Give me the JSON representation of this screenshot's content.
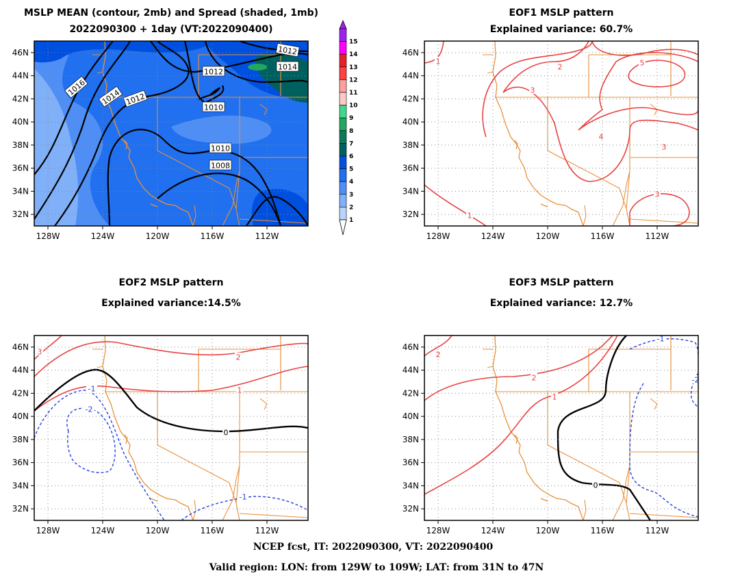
{
  "panels": [
    {
      "id": "mean",
      "title_lines": [
        "MSLP MEAN (contour, 2mb) and Spread (shaded, 1mb)",
        "2022090300 + 1day (VT:2022090400)"
      ],
      "contour_labels": [
        "1016",
        "1014",
        "1012",
        "1012",
        "1012",
        "1014",
        "1010",
        "1010",
        "1008"
      ]
    },
    {
      "id": "eof1",
      "title_lines": [
        "EOF1 MSLP pattern",
        "Explained variance: 60.7%"
      ],
      "contour_labels": [
        "1",
        "2",
        "3",
        "4",
        "5",
        "3",
        "3",
        "1"
      ]
    },
    {
      "id": "eof2",
      "title_lines": [
        "EOF2 MSLP pattern",
        "Explained variance:14.5%"
      ],
      "contour_labels": [
        "3",
        "2",
        "1",
        "0",
        "-1",
        "-2",
        "-1"
      ]
    },
    {
      "id": "eof3",
      "title_lines": [
        "EOF3 MSLP pattern",
        "Explained variance: 12.7%"
      ],
      "contour_labels": [
        "2",
        "2",
        "1",
        "0",
        "-1",
        "-2"
      ]
    }
  ],
  "axes": {
    "lat_labels": [
      "46N",
      "44N",
      "42N",
      "40N",
      "38N",
      "36N",
      "34N",
      "32N"
    ],
    "lon_labels": [
      "128W",
      "124W",
      "120W",
      "116W",
      "112W"
    ]
  },
  "colorbar": {
    "labels": [
      "15",
      "14",
      "13",
      "12",
      "11",
      "10",
      "9",
      "8",
      "7",
      "6",
      "5",
      "4",
      "3",
      "2",
      "1"
    ],
    "colors": [
      "#a020f0",
      "#ff00ff",
      "#e8202a",
      "#ff4040",
      "#ffa0a0",
      "#ffc8c8",
      "#40d890",
      "#20a860",
      "#107858",
      "#006060",
      "#0050e0",
      "#2070f0",
      "#4f8ff5",
      "#80b0f8",
      "#b8d4fc"
    ]
  },
  "colors": {
    "coast": "#e8903a",
    "positive": "#e84040",
    "negative": "#2040e0",
    "zero": "#000000",
    "mean_contour": "#000000"
  },
  "footer": {
    "line1": "NCEP fcst, IT: 2022090300, VT: 2022090400",
    "line2": "Valid region: LON: from 129W to 109W; LAT: from 31N to 47N"
  }
}
